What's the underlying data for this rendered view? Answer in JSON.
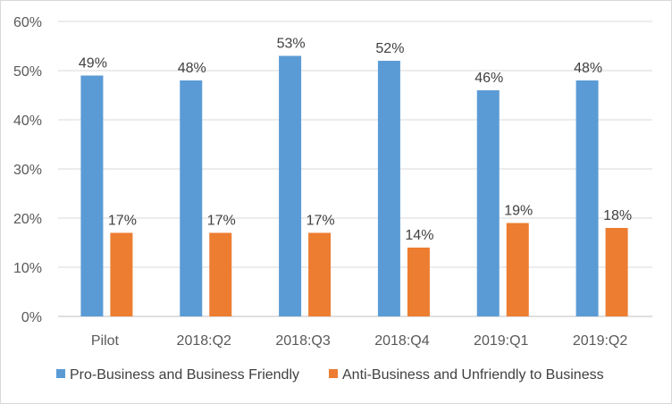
{
  "chart_data": {
    "type": "bar",
    "categories": [
      "Pilot",
      "2018:Q2",
      "2018:Q3",
      "2018:Q4",
      "2019:Q1",
      "2019:Q2"
    ],
    "series": [
      {
        "name": "Pro-Business and Business Friendly",
        "values": [
          49,
          48,
          53,
          52,
          46,
          48
        ],
        "labels": [
          "49%",
          "48%",
          "53%",
          "52%",
          "46%",
          "48%"
        ],
        "color": "#5b9bd5"
      },
      {
        "name": "Anti-Business and Unfriendly to Business",
        "values": [
          17,
          17,
          17,
          14,
          19,
          18
        ],
        "labels": [
          "17%",
          "17%",
          "17%",
          "14%",
          "19%",
          "18%"
        ],
        "color": "#ed7d31"
      }
    ],
    "ylim": [
      0,
      60
    ],
    "yticks": [
      0,
      10,
      20,
      30,
      40,
      50,
      60
    ],
    "ytick_labels": [
      "0%",
      "10%",
      "20%",
      "30%",
      "40%",
      "50%",
      "60%"
    ],
    "grid": true,
    "legend_position": "bottom"
  }
}
